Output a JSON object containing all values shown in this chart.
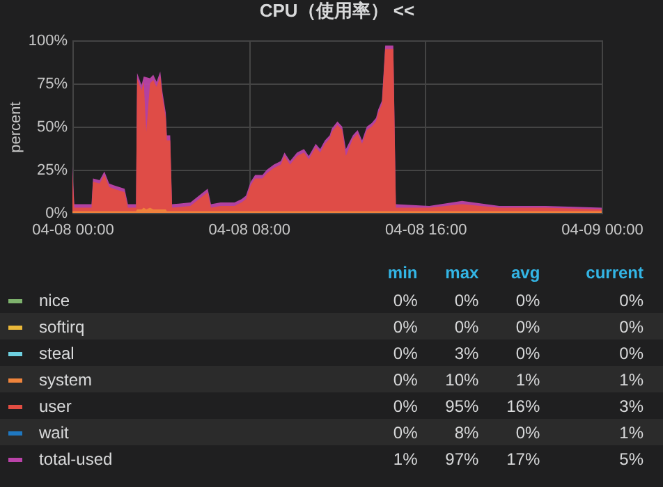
{
  "chart_data": {
    "type": "area",
    "title": "CPU（使用率） <<",
    "ylabel": "percent",
    "x": [
      "--04-08T00:00",
      "--04-08T00:05",
      "--04-08T00:52",
      "--04-08T00:56",
      "--04-08T01:14",
      "--04-08T01:27",
      "--04-08T01:40",
      "--04-08T01:52",
      "--04-08T02:22",
      "--04-08T02:31",
      "--04-08T02:53",
      "--04-08T02:56",
      "--04-08T03:08",
      "--04-08T03:14",
      "--04-08T03:21",
      "--04-08T03:31",
      "--04-08T03:40",
      "--04-08T03:49",
      "--04-08T03:59",
      "--04-08T04:05",
      "--04-08T04:14",
      "--04-08T04:17",
      "--04-08T04:26",
      "--04-08T04:31",
      "--04-08T05:21",
      "--04-08T06:08",
      "--04-08T06:17",
      "--04-08T06:43",
      "--04-08T07:21",
      "--04-08T07:40",
      "--04-08T07:52",
      "--04-08T08:05",
      "--04-08T08:17",
      "--04-08T08:37",
      "--04-08T08:49",
      "--04-08T09:08",
      "--04-08T09:27",
      "--04-08T09:37",
      "--04-08T09:52",
      "--04-08T10:11",
      "--04-08T10:30",
      "--04-08T10:43",
      "--04-08T11:02",
      "--04-08T11:14",
      "--04-08T11:27",
      "--04-08T11:40",
      "--04-08T11:46",
      "--04-08T12:01",
      "--04-08T12:14",
      "--04-08T12:24",
      "--04-08T12:43",
      "--04-08T12:56",
      "--04-08T13:08",
      "--04-08T13:21",
      "--04-08T13:34",
      "--04-08T13:46",
      "--04-08T13:52",
      "--04-08T14:02",
      "--04-08T14:11",
      "--04-08T14:33",
      "--04-08T14:40",
      "--04-08T16:11",
      "--04-08T17:40",
      "--04-08T19:21",
      "--04-08T21:27",
      "--04-09T00:00"
    ],
    "series": [
      {
        "name": "nice",
        "color": "#7eb26d",
        "values": [
          null,
          null,
          null,
          null,
          null,
          null,
          null,
          null,
          null,
          null,
          null,
          null,
          null,
          null,
          null,
          null,
          null,
          null,
          null,
          null,
          null,
          null,
          null,
          null,
          null,
          null,
          null,
          null,
          null,
          null,
          null,
          null,
          null,
          null,
          null,
          null,
          null,
          null,
          null,
          null,
          null,
          null,
          null,
          null,
          null,
          null,
          null,
          null,
          null,
          null,
          null,
          null,
          null,
          null,
          null,
          null,
          null,
          null,
          null,
          null,
          null,
          null,
          null,
          null,
          null,
          null
        ]
      },
      {
        "name": "softirq",
        "color": "#eab839",
        "values": [
          null,
          null,
          null,
          null,
          null,
          null,
          null,
          null,
          null,
          null,
          null,
          null,
          null,
          null,
          null,
          null,
          null,
          null,
          null,
          null,
          null,
          null,
          null,
          null,
          null,
          null,
          null,
          null,
          null,
          null,
          null,
          null,
          null,
          null,
          null,
          null,
          null,
          null,
          null,
          null,
          null,
          null,
          null,
          null,
          null,
          null,
          null,
          null,
          null,
          null,
          null,
          null,
          null,
          null,
          null,
          null,
          null,
          null,
          null,
          null,
          null,
          null,
          null,
          null,
          null,
          null
        ]
      },
      {
        "name": "steal",
        "color": "#6ed0e0",
        "values": [
          null,
          null,
          null,
          null,
          null,
          null,
          null,
          null,
          null,
          null,
          null,
          null,
          null,
          null,
          null,
          null,
          null,
          null,
          null,
          null,
          null,
          null,
          null,
          null,
          null,
          null,
          null,
          null,
          null,
          null,
          null,
          null,
          null,
          null,
          null,
          null,
          null,
          null,
          null,
          null,
          null,
          null,
          null,
          null,
          null,
          null,
          null,
          null,
          null,
          null,
          null,
          null,
          null,
          null,
          null,
          null,
          null,
          null,
          null,
          null,
          null,
          null,
          null,
          null,
          null,
          null
        ]
      },
      {
        "name": "system",
        "color": "#ef843c",
        "values": [
          1,
          1,
          1,
          1,
          1,
          1,
          1,
          1,
          1,
          1,
          1,
          2,
          2,
          3,
          2,
          3,
          2,
          2,
          2,
          2,
          2,
          1,
          1,
          1,
          1,
          1,
          1,
          1,
          1,
          1,
          1,
          1,
          1,
          1,
          1,
          1,
          1,
          1,
          1,
          1,
          1,
          1,
          1,
          1,
          1,
          1,
          1,
          1,
          1,
          1,
          1,
          1,
          1,
          1,
          1,
          1,
          1,
          1,
          1,
          1,
          1,
          1,
          1,
          1,
          1,
          1
        ]
      },
      {
        "name": "user",
        "color": "#e24d42",
        "values": [
          24,
          3,
          3,
          18,
          17,
          22,
          15,
          14,
          12,
          3,
          3,
          78,
          71,
          76,
          47,
          75,
          77,
          73,
          79,
          67,
          55,
          42,
          42,
          3,
          4,
          12,
          3,
          4,
          4,
          6,
          8,
          16,
          20,
          20,
          23,
          26,
          28,
          33,
          28,
          33,
          35,
          31,
          38,
          35,
          40,
          43,
          47,
          51,
          48,
          33,
          43,
          46,
          40,
          48,
          50,
          53,
          58,
          63,
          95,
          95,
          3,
          3,
          5,
          3,
          3,
          2
        ]
      },
      {
        "name": "wait",
        "color": "#1f78c1",
        "values": [
          null,
          null,
          null,
          null,
          null,
          null,
          null,
          null,
          null,
          null,
          null,
          null,
          null,
          null,
          null,
          null,
          null,
          null,
          null,
          null,
          null,
          null,
          null,
          null,
          null,
          null,
          null,
          null,
          null,
          null,
          null,
          null,
          null,
          null,
          null,
          null,
          null,
          null,
          null,
          null,
          null,
          null,
          null,
          null,
          null,
          null,
          null,
          null,
          null,
          null,
          null,
          null,
          null,
          null,
          null,
          null,
          null,
          null,
          null,
          null,
          null,
          null,
          null,
          null,
          null,
          null
        ]
      },
      {
        "name": "total-used",
        "color": "#ba43a9",
        "values": [
          27,
          5,
          5,
          20,
          19,
          24,
          17,
          16,
          14,
          5,
          5,
          81,
          74,
          79,
          null,
          78,
          80,
          76,
          82,
          70,
          58,
          45,
          45,
          5,
          6,
          14,
          5,
          6,
          6,
          8,
          10,
          18,
          22,
          22,
          25,
          28,
          30,
          35,
          30,
          35,
          37,
          33,
          40,
          37,
          42,
          45,
          49,
          53,
          50,
          37,
          45,
          48,
          42,
          50,
          52,
          55,
          60,
          65,
          97,
          97,
          5,
          4,
          7,
          4,
          4,
          3
        ]
      }
    ],
    "xlim": [
      "--04-08T00:00",
      "--04-09T00:00"
    ],
    "xticks": [
      {
        "value": "--04-08T00:00",
        "label": "04-08 00:00"
      },
      {
        "value": "--04-08T08:00",
        "label": "04-08 08:00"
      },
      {
        "value": "--04-08T16:00",
        "label": "04-08 16:00"
      },
      {
        "value": "--04-09T00:00",
        "label": "04-09 00:00"
      }
    ],
    "ylim": [
      0,
      100
    ],
    "yticks": [
      {
        "value": 0,
        "label": "0%"
      },
      {
        "value": 25,
        "label": "25%"
      },
      {
        "value": 50,
        "label": "50%"
      },
      {
        "value": 75,
        "label": "75%"
      },
      {
        "value": 100,
        "label": "100%"
      }
    ],
    "grid": true,
    "legend": "bottom",
    "annotations": [
      "min",
      "max",
      "avg",
      "current",
      "0%",
      "0%",
      "0%",
      "0%",
      "0%",
      "0%",
      "0%",
      "0%",
      "0%",
      "3%",
      "0%",
      "0%",
      "0%",
      "10%",
      "1%",
      "1%",
      "0%",
      "95%",
      "16%",
      "3%",
      "0%",
      "8%",
      "0%",
      "1%",
      "1%",
      "97%",
      "17%",
      "5%"
    ]
  }
}
